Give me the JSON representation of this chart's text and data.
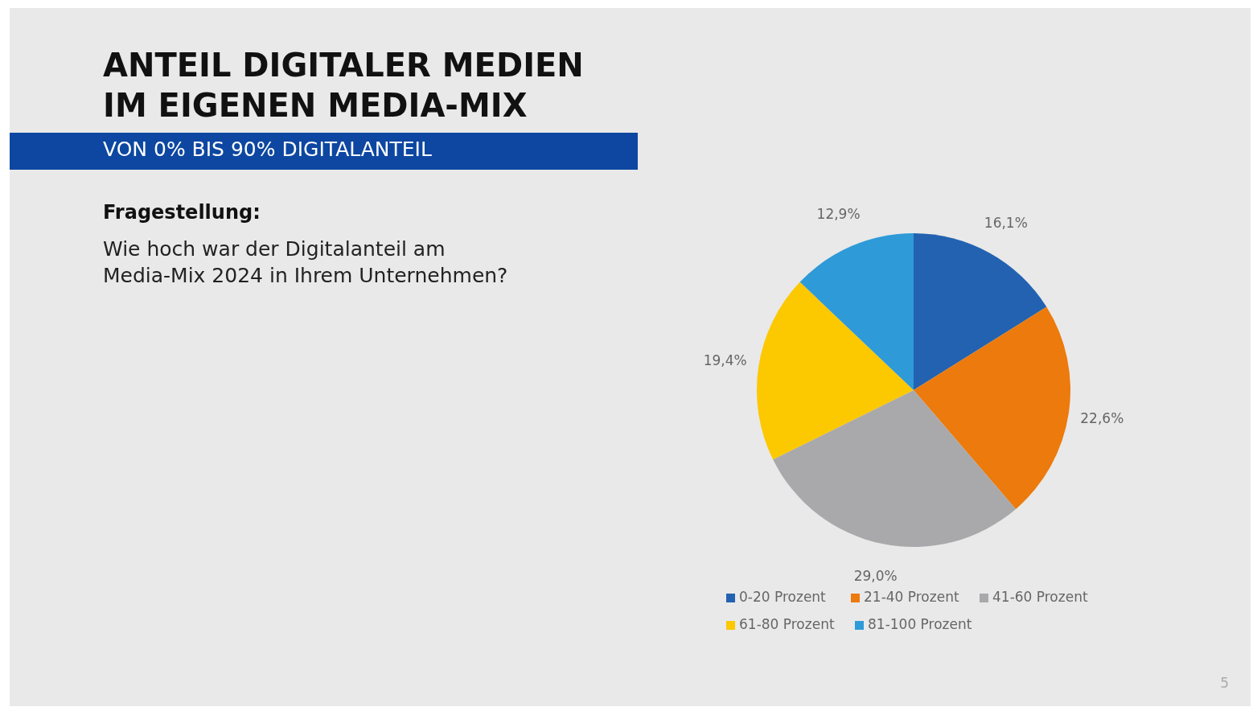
{
  "chart_data": {
    "type": "pie",
    "title": "ANTEIL DIGITALER MEDIEN\nIM EIGENEN MEDIA-MIX",
    "subtitle": "VON 0% BIS 90% DIGITALANTEIL",
    "annotations": [
      "Fragestellung:",
      "Wie hoch war der Digitalanteil am\nMedia-Mix 2024 in Ihrem Unternehmen?",
      "5"
    ],
    "categories": [
      "0-20 Prozent",
      "21-40 Prozent",
      "41-60 Prozent",
      "61-80 Prozent",
      "81-100 Prozent"
    ],
    "values": [
      16.1,
      22.6,
      29.0,
      19.4,
      12.9
    ],
    "value_labels": [
      "16,1%",
      "22,6%",
      "29,0%",
      "19,4%",
      "12,9%"
    ],
    "colors": [
      "#2362b0",
      "#ec7a0c",
      "#a9a9ab",
      "#fcc800",
      "#2e9ad8"
    ],
    "legend": "bottom"
  }
}
